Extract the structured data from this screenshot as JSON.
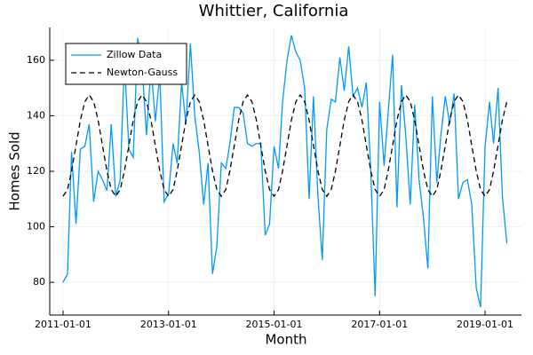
{
  "chart_data": {
    "type": "line",
    "title": "Whittier, California",
    "x_label": "Month",
    "y_label": "Homes Sold",
    "x": [
      "2011-01-01",
      "2011-02-01",
      "2011-03-01",
      "2011-04-01",
      "2011-05-01",
      "2011-06-01",
      "2011-07-01",
      "2011-08-01",
      "2011-09-01",
      "2011-10-01",
      "2011-11-01",
      "2011-12-01",
      "2012-01-01",
      "2012-02-01",
      "2012-03-01",
      "2012-04-01",
      "2012-05-01",
      "2012-06-01",
      "2012-07-01",
      "2012-08-01",
      "2012-09-01",
      "2012-10-01",
      "2012-11-01",
      "2012-12-01",
      "2013-01-01",
      "2013-02-01",
      "2013-03-01",
      "2013-04-01",
      "2013-05-01",
      "2013-06-01",
      "2013-07-01",
      "2013-08-01",
      "2013-09-01",
      "2013-10-01",
      "2013-11-01",
      "2013-12-01",
      "2014-01-01",
      "2014-02-01",
      "2014-03-01",
      "2014-04-01",
      "2014-05-01",
      "2014-06-01",
      "2014-07-01",
      "2014-08-01",
      "2014-09-01",
      "2014-10-01",
      "2014-11-01",
      "2014-12-01",
      "2015-01-01",
      "2015-02-01",
      "2015-03-01",
      "2015-04-01",
      "2015-05-01",
      "2015-06-01",
      "2015-07-01",
      "2015-08-01",
      "2015-09-01",
      "2015-10-01",
      "2015-11-01",
      "2015-12-01",
      "2016-01-01",
      "2016-02-01",
      "2016-03-01",
      "2016-04-01",
      "2016-05-01",
      "2016-06-01",
      "2016-07-01",
      "2016-08-01",
      "2016-09-01",
      "2016-10-01",
      "2016-11-01",
      "2016-12-01",
      "2017-01-01",
      "2017-02-01",
      "2017-03-01",
      "2017-04-01",
      "2017-05-01",
      "2017-06-01",
      "2017-07-01",
      "2017-08-01",
      "2017-09-01",
      "2017-10-01",
      "2017-11-01",
      "2017-12-01",
      "2018-01-01",
      "2018-02-01",
      "2018-03-01",
      "2018-04-01",
      "2018-05-01",
      "2018-06-01",
      "2018-07-01",
      "2018-08-01",
      "2018-09-01",
      "2018-10-01",
      "2018-11-01",
      "2018-12-01",
      "2019-01-01",
      "2019-02-01",
      "2019-03-01",
      "2019-04-01",
      "2019-05-01",
      "2019-06-01"
    ],
    "series": [
      {
        "name": "Zillow Data",
        "color": "#009af9",
        "dash": false,
        "values": [
          80,
          83,
          127,
          101,
          128,
          129,
          137,
          109,
          120,
          117,
          113,
          137,
          111,
          117,
          160,
          128,
          125,
          168,
          158,
          133,
          158,
          138,
          155,
          109,
          112,
          130,
          123,
          152,
          137,
          166,
          140,
          127,
          108,
          123,
          83,
          93,
          123,
          121,
          130,
          143,
          143,
          141,
          130,
          129,
          130,
          130,
          97,
          101,
          129,
          121,
          145,
          160,
          169,
          163,
          160,
          150,
          110,
          147,
          111,
          88,
          135,
          146,
          145,
          161,
          149,
          165,
          147,
          150,
          143,
          152,
          120,
          75,
          145,
          122,
          141,
          162,
          107,
          151,
          133,
          108,
          144,
          117,
          103,
          85,
          147,
          116,
          133,
          147,
          137,
          148,
          110,
          116,
          117,
          108,
          78,
          71,
          129,
          145,
          130,
          150,
          111,
          94
        ]
      },
      {
        "name": "Newton-Gauss",
        "color": "#000000",
        "dash": true,
        "values": [
          111.0,
          113.4,
          120.1,
          129.3,
          138.4,
          145.1,
          147.5,
          145.1,
          138.4,
          129.3,
          120.1,
          113.4,
          111.0,
          113.4,
          120.1,
          129.3,
          138.4,
          145.1,
          147.5,
          145.1,
          138.4,
          129.3,
          120.1,
          113.4,
          111.0,
          113.4,
          120.1,
          129.3,
          138.4,
          145.1,
          147.5,
          145.1,
          138.4,
          129.3,
          120.1,
          113.4,
          111.0,
          113.4,
          120.1,
          129.3,
          138.4,
          145.1,
          147.5,
          145.1,
          138.4,
          129.3,
          120.1,
          113.4,
          111.0,
          113.4,
          120.1,
          129.3,
          138.4,
          145.1,
          147.5,
          145.1,
          138.4,
          129.3,
          120.1,
          113.4,
          111.0,
          113.4,
          120.1,
          129.3,
          138.4,
          145.1,
          147.5,
          145.1,
          138.4,
          129.3,
          120.1,
          113.4,
          111.0,
          113.4,
          120.1,
          129.3,
          138.4,
          145.1,
          147.5,
          145.1,
          138.4,
          129.3,
          120.1,
          113.4,
          111.0,
          113.4,
          120.1,
          129.3,
          138.4,
          145.1,
          147.5,
          145.1,
          138.4,
          129.3,
          120.1,
          113.4,
          111.0,
          113.4,
          120.1,
          129.3,
          138.4,
          145.1
        ]
      }
    ],
    "xlim": [
      "2010-10-01",
      "2019-09-10"
    ],
    "xticks": [
      "2011-01-01",
      "2013-01-01",
      "2015-01-01",
      "2017-01-01",
      "2019-01-01"
    ],
    "ylim": [
      68.2,
      171.8
    ],
    "yticks": [
      80,
      100,
      120,
      140,
      160
    ],
    "grid": true,
    "legend": "top-left"
  }
}
